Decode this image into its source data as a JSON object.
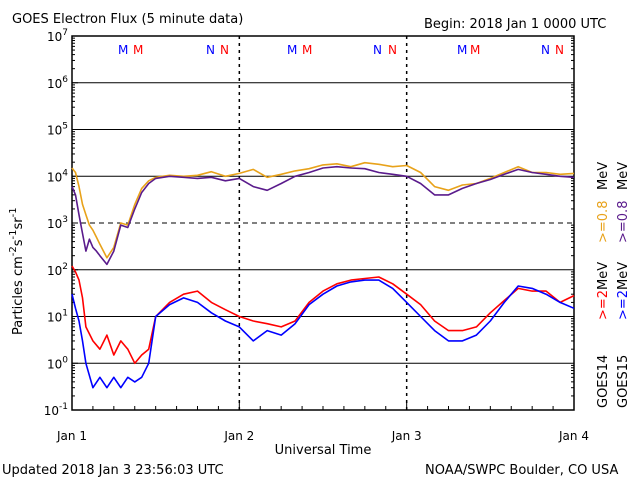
{
  "colors": {
    "goes15_high": "#e8a21a",
    "goes14_high": "#5a1b8c",
    "goes15_low": "#ff0000",
    "goes14_low": "#0000ff",
    "marker_m": "#ff0000",
    "marker_m2": "#0000ff"
  },
  "header": {
    "title": "GOES Electron Flux (5 minute data)",
    "begin": "Begin: 2018 Jan 1 0000 UTC"
  },
  "footer": {
    "updated": "Updated 2018 Jan  3 23:56:03 UTC",
    "credit": "NOAA/SWPC Boulder, CO USA"
  },
  "markers": [
    {
      "label": "M",
      "color": "blue"
    },
    {
      "label": "M",
      "color": "red"
    },
    {
      "label": "N",
      "color": "blue"
    },
    {
      "label": "N",
      "color": "red"
    },
    {
      "label": "M",
      "color": "blue"
    },
    {
      "label": "M",
      "color": "red"
    },
    {
      "label": "N",
      "color": "blue"
    },
    {
      "label": "N",
      "color": "red"
    },
    {
      "label": "M",
      "color": "blue"
    },
    {
      "label": "M",
      "color": "red"
    },
    {
      "label": "N",
      "color": "blue"
    },
    {
      "label": "N",
      "color": "red"
    }
  ],
  "legend": {
    "goes14_label": "GOES14",
    "goes15_label": "GOES15",
    "g14_low": ">=2",
    "g14_high": ">=0.8",
    "g15_low": ">=2",
    "g15_high": ">=0.8",
    "unit": "MeV"
  },
  "chart_data": {
    "type": "line",
    "title": "GOES Electron Flux (5 minute data)",
    "xlabel": "Universal Time",
    "ylabel": "Particles cm-2 s-1 sr-1",
    "yscale": "log",
    "ylim": [
      0.1,
      10000000
    ],
    "xlim": [
      0,
      72
    ],
    "x_unit": "hours since 2018 Jan 1 0000 UTC",
    "x_ticks": [
      {
        "value": 0,
        "label": "Jan 1"
      },
      {
        "value": 24,
        "label": "Jan 2"
      },
      {
        "value": 48,
        "label": "Jan 3"
      },
      {
        "value": 72,
        "label": "Jan 4"
      }
    ],
    "y_ticks": [
      {
        "value": 0.1,
        "base": "10",
        "exp": "-1"
      },
      {
        "value": 1,
        "base": "10",
        "exp": "0"
      },
      {
        "value": 10,
        "base": "10",
        "exp": "1"
      },
      {
        "value": 100,
        "base": "10",
        "exp": "2"
      },
      {
        "value": 1000,
        "base": "10",
        "exp": "3"
      },
      {
        "value": 10000,
        "base": "10",
        "exp": "4"
      },
      {
        "value": 100000,
        "base": "10",
        "exp": "5"
      },
      {
        "value": 1000000,
        "base": "10",
        "exp": "6"
      },
      {
        "value": 10000000,
        "base": "10",
        "exp": "7"
      }
    ],
    "thresholds": [
      100,
      1000
    ],
    "grid": true,
    "series": [
      {
        "name": "GOES15 >=0.8 MeV",
        "color": "#e8a21a",
        "x": [
          0,
          0.5,
          1,
          1.5,
          2,
          2.5,
          3,
          3.5,
          4,
          5,
          6,
          7,
          8,
          9,
          10,
          11,
          12,
          14,
          16,
          18,
          20,
          22,
          24,
          26,
          28,
          30,
          32,
          34,
          36,
          38,
          40,
          42,
          44,
          46,
          48,
          50,
          52,
          54,
          56,
          58,
          60,
          62,
          64,
          66,
          68,
          70,
          72
        ],
        "y": [
          15000,
          12000,
          6000,
          2500,
          1500,
          900,
          700,
          500,
          350,
          180,
          300,
          1000,
          900,
          2500,
          5500,
          8000,
          9500,
          10500,
          10000,
          10500,
          12500,
          10000,
          11500,
          14000,
          9500,
          11000,
          13000,
          14500,
          17500,
          18500,
          16000,
          19500,
          18000,
          16000,
          17000,
          12000,
          6000,
          5000,
          6500,
          7000,
          9000,
          12000,
          16000,
          12000,
          12000,
          11000,
          11500
        ]
      },
      {
        "name": "GOES14 >=0.8 MeV",
        "color": "#5a1b8c",
        "x": [
          0,
          0.5,
          1,
          1.5,
          2,
          2.5,
          3,
          3.5,
          4,
          5,
          6,
          7,
          8,
          9,
          10,
          11,
          12,
          14,
          16,
          18,
          20,
          22,
          24,
          26,
          28,
          30,
          32,
          34,
          36,
          38,
          40,
          42,
          44,
          46,
          48,
          50,
          52,
          54,
          56,
          58,
          60,
          62,
          64,
          66,
          68,
          70,
          72
        ],
        "y": [
          6000,
          4000,
          1500,
          600,
          250,
          450,
          300,
          250,
          200,
          130,
          250,
          900,
          800,
          2000,
          4500,
          7000,
          9000,
          10000,
          9500,
          9000,
          9500,
          8000,
          9000,
          6000,
          5000,
          7000,
          10000,
          12000,
          15000,
          16000,
          15000,
          14500,
          12000,
          11000,
          10000,
          7000,
          4000,
          4000,
          5500,
          7000,
          8500,
          11000,
          14000,
          12000,
          11000,
          10000,
          9500
        ]
      },
      {
        "name": "GOES15 >=2 MeV",
        "color": "#ff0000",
        "x": [
          0,
          0.5,
          1,
          1.5,
          2,
          3,
          4,
          5,
          6,
          7,
          8,
          9,
          10,
          11,
          12,
          14,
          16,
          18,
          20,
          22,
          24,
          26,
          28,
          30,
          32,
          34,
          36,
          38,
          40,
          42,
          44,
          46,
          48,
          50,
          52,
          54,
          56,
          58,
          60,
          62,
          64,
          66,
          68,
          70,
          72
        ],
        "y": [
          120,
          90,
          60,
          25,
          6,
          3,
          2,
          4,
          1.5,
          3,
          2,
          1,
          1.5,
          2,
          10,
          20,
          30,
          35,
          20,
          14,
          10,
          8,
          7,
          6,
          8,
          20,
          35,
          50,
          60,
          65,
          70,
          50,
          30,
          18,
          8,
          5,
          5,
          6,
          12,
          22,
          40,
          35,
          35,
          20,
          28
        ]
      },
      {
        "name": "GOES14 >=2 MeV",
        "color": "#0000ff",
        "x": [
          0,
          0.5,
          1,
          1.5,
          2,
          3,
          4,
          5,
          6,
          7,
          8,
          9,
          10,
          11,
          12,
          14,
          16,
          18,
          20,
          22,
          24,
          26,
          28,
          30,
          32,
          34,
          36,
          38,
          40,
          42,
          44,
          46,
          48,
          50,
          52,
          54,
          56,
          58,
          60,
          62,
          64,
          66,
          68,
          70,
          72
        ],
        "y": [
          30,
          15,
          8,
          3,
          1,
          0.3,
          0.5,
          0.3,
          0.5,
          0.3,
          0.5,
          0.4,
          0.5,
          1,
          10,
          18,
          25,
          20,
          12,
          8,
          6,
          3,
          5,
          4,
          7,
          18,
          30,
          45,
          55,
          60,
          60,
          40,
          20,
          10,
          5,
          3,
          3,
          4,
          8,
          20,
          45,
          40,
          30,
          20,
          15
        ]
      }
    ]
  }
}
